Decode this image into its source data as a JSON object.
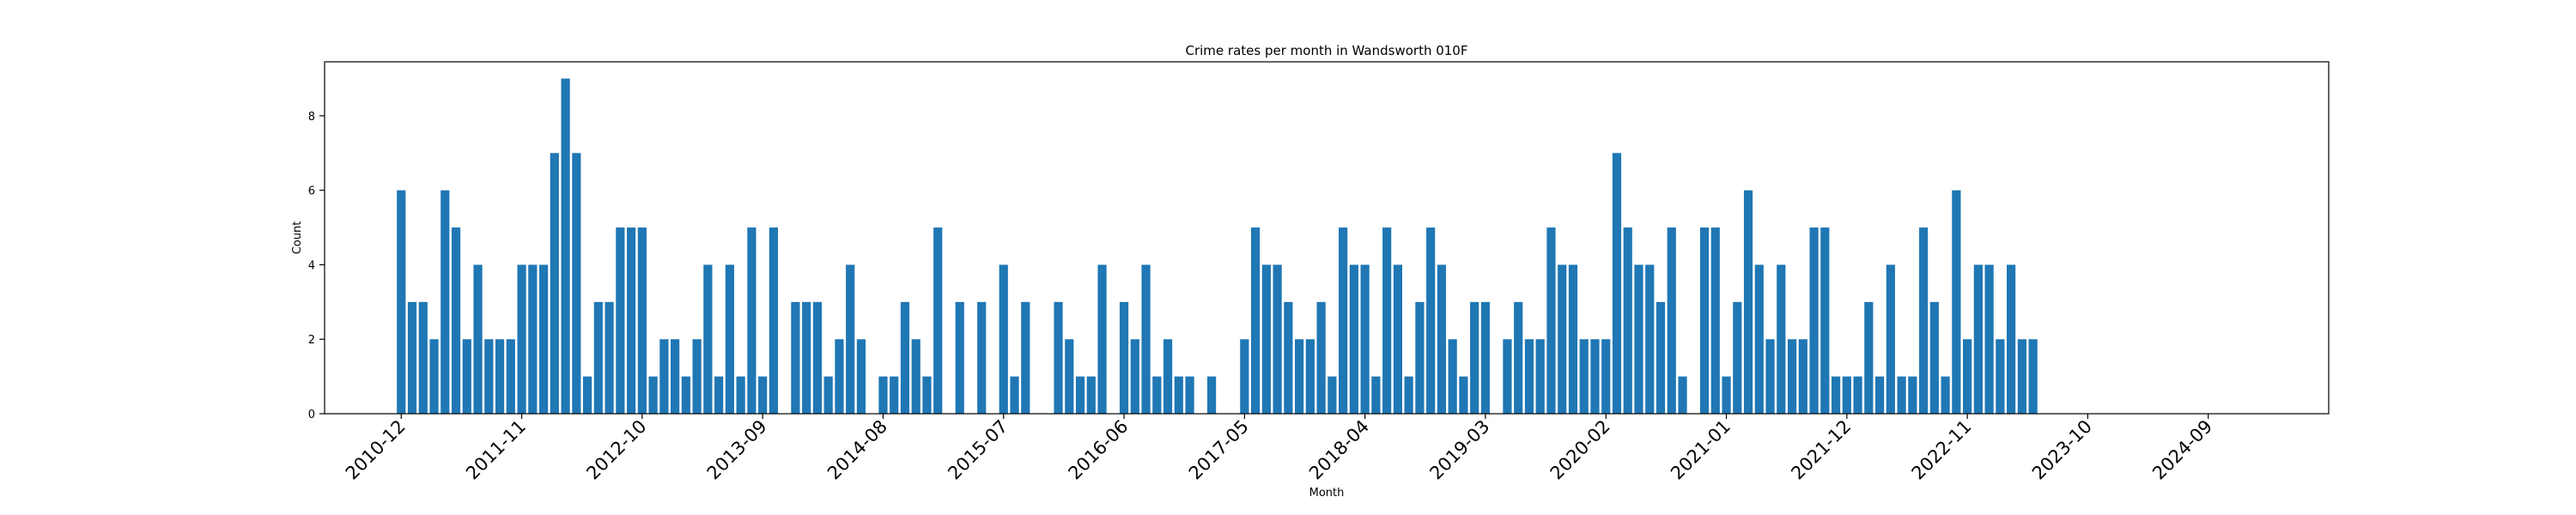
{
  "chart_data": {
    "type": "bar",
    "title": "Crime rates per month in Wandsworth 010F",
    "xlabel": "Month",
    "ylabel": "Count",
    "ylim": [
      0,
      9.45
    ],
    "yticks": [
      0,
      2,
      4,
      6,
      8
    ],
    "color": "#1f77b4",
    "grid": false,
    "x_ticks": [
      "2010-12",
      "2011-11",
      "2012-10",
      "2013-09",
      "2014-08",
      "2015-07",
      "2016-06",
      "2017-05",
      "2018-04",
      "2019-03",
      "2020-02",
      "2021-01",
      "2021-12",
      "2022-11",
      "2023-10",
      "2024-09"
    ],
    "categories": [
      "2010-12",
      "2011-01",
      "2011-02",
      "2011-03",
      "2011-04",
      "2011-05",
      "2011-06",
      "2011-07",
      "2011-08",
      "2011-09",
      "2011-10",
      "2011-11",
      "2011-12",
      "2012-01",
      "2012-02",
      "2012-03",
      "2012-04",
      "2012-05",
      "2012-06",
      "2012-07",
      "2012-08",
      "2012-09",
      "2012-10",
      "2012-11",
      "2012-12",
      "2013-01",
      "2013-02",
      "2013-03",
      "2013-04",
      "2013-05",
      "2013-06",
      "2013-07",
      "2013-08",
      "2013-09",
      "2013-10",
      "2013-11",
      "2013-12",
      "2014-01",
      "2014-02",
      "2014-03",
      "2014-04",
      "2014-05",
      "2014-06",
      "2014-07",
      "2014-08",
      "2014-09",
      "2014-10",
      "2014-11",
      "2014-12",
      "2015-01",
      "2015-02",
      "2015-03",
      "2015-04",
      "2015-05",
      "2015-06",
      "2015-07",
      "2015-08",
      "2015-09",
      "2015-10",
      "2015-11",
      "2015-12",
      "2016-01",
      "2016-02",
      "2016-03",
      "2016-04",
      "2016-05",
      "2016-06",
      "2016-07",
      "2016-08",
      "2016-09",
      "2016-10",
      "2016-11",
      "2016-12",
      "2017-01",
      "2017-02",
      "2017-03",
      "2017-04",
      "2017-05",
      "2017-06",
      "2017-07",
      "2017-08",
      "2017-09",
      "2017-10",
      "2017-11",
      "2017-12",
      "2018-01",
      "2018-02",
      "2018-03",
      "2018-04",
      "2018-05",
      "2018-06",
      "2018-07",
      "2018-08",
      "2018-09",
      "2018-10",
      "2018-11",
      "2018-12",
      "2019-01",
      "2019-02",
      "2019-03",
      "2019-04",
      "2019-05",
      "2019-06",
      "2019-07",
      "2019-08",
      "2019-09",
      "2019-10",
      "2019-11",
      "2019-12",
      "2020-01",
      "2020-02",
      "2020-03",
      "2020-04",
      "2020-05",
      "2020-06",
      "2020-07",
      "2020-08",
      "2020-09",
      "2020-10",
      "2020-11",
      "2020-12",
      "2021-01",
      "2021-02",
      "2021-03",
      "2021-04",
      "2021-05",
      "2021-06",
      "2021-07",
      "2021-08",
      "2021-09",
      "2021-10",
      "2021-11",
      "2021-12",
      "2022-01",
      "2022-02",
      "2022-03",
      "2022-04",
      "2022-05",
      "2022-06",
      "2022-07",
      "2022-08",
      "2022-09",
      "2022-10",
      "2022-11",
      "2022-12",
      "2023-01",
      "2023-02",
      "2023-03",
      "2023-04",
      "2023-05"
    ],
    "values": [
      6,
      3,
      3,
      2,
      6,
      5,
      2,
      4,
      2,
      2,
      2,
      4,
      4,
      4,
      7,
      9,
      7,
      1,
      3,
      3,
      5,
      5,
      5,
      1,
      2,
      2,
      1,
      2,
      4,
      1,
      4,
      1,
      5,
      1,
      5,
      0,
      3,
      3,
      3,
      1,
      2,
      4,
      2,
      0,
      1,
      1,
      3,
      2,
      1,
      5,
      0,
      3,
      0,
      3,
      0,
      4,
      1,
      3,
      0,
      0,
      3,
      2,
      1,
      1,
      4,
      0,
      3,
      2,
      4,
      1,
      2,
      1,
      1,
      0,
      1,
      0,
      0,
      2,
      5,
      4,
      4,
      3,
      2,
      2,
      3,
      1,
      5,
      4,
      4,
      1,
      5,
      4,
      1,
      3,
      5,
      4,
      2,
      1,
      3,
      3,
      0,
      2,
      3,
      2,
      2,
      5,
      4,
      4,
      2,
      2,
      2,
      7,
      5,
      4,
      4,
      3,
      5,
      1,
      0,
      5,
      5,
      1,
      3,
      6,
      4,
      2,
      4,
      2,
      2,
      5,
      5,
      1,
      1,
      1,
      3,
      1,
      4,
      1,
      1,
      5,
      3,
      1,
      6,
      2,
      4,
      4,
      2,
      4,
      2,
      2
    ],
    "x_range": [
      "2010-05",
      "2025-08"
    ]
  }
}
